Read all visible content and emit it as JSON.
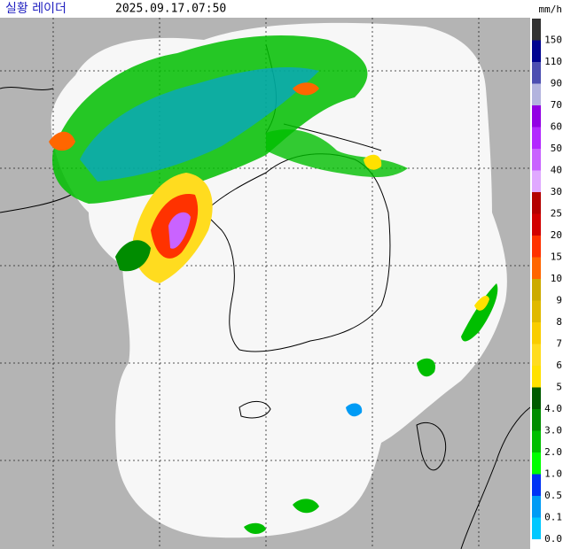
{
  "header": {
    "title": "실황 레이더",
    "timestamp": "2025.09.17.07:50"
  },
  "legend": {
    "unit": "mm/h",
    "items": [
      {
        "label": "150",
        "color": "#333333"
      },
      {
        "label": "110",
        "color": "#000390"
      },
      {
        "label": "90",
        "color": "#4c4eb1"
      },
      {
        "label": "70",
        "color": "#b3b4de"
      },
      {
        "label": "60",
        "color": "#9300e4"
      },
      {
        "label": "50",
        "color": "#b329ff"
      },
      {
        "label": "40",
        "color": "#c963ff"
      },
      {
        "label": "30",
        "color": "#e0a9ff"
      },
      {
        "label": "25",
        "color": "#b40000"
      },
      {
        "label": "20",
        "color": "#d20000"
      },
      {
        "label": "15",
        "color": "#ff3200"
      },
      {
        "label": "10",
        "color": "#ff6600"
      },
      {
        "label": "9",
        "color": "#ccaa00"
      },
      {
        "label": "8",
        "color": "#e0b900"
      },
      {
        "label": "7",
        "color": "#f9cd00"
      },
      {
        "label": "6",
        "color": "#ffdc1f"
      },
      {
        "label": "5",
        "color": "#ffe100"
      },
      {
        "label": "4.0",
        "color": "#005a00"
      },
      {
        "label": "3.0",
        "color": "#008c00"
      },
      {
        "label": "2.0",
        "color": "#00be00"
      },
      {
        "label": "1.0",
        "color": "#00ff00"
      },
      {
        "label": "0.5",
        "color": "#0033f5"
      },
      {
        "label": "0.1",
        "color": "#009bf5"
      },
      {
        "label": "0.0",
        "color": "#00c8ff"
      }
    ]
  }
}
